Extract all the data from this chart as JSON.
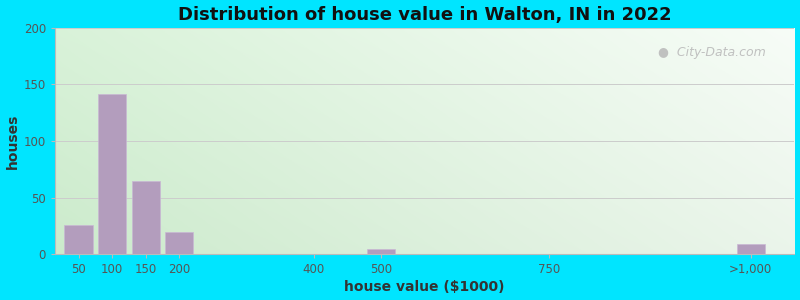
{
  "title": "Distribution of house value in Walton, IN in 2022",
  "xlabel": "house value ($1000)",
  "ylabel": "houses",
  "bar_color": "#b39dbd",
  "bar_edgecolor": "#c9b8d4",
  "outer_background": "#00e5ff",
  "ylim": [
    0,
    200
  ],
  "yticks": [
    0,
    50,
    100,
    150,
    200
  ],
  "categories": [
    "50",
    "100",
    "150",
    "200",
    "400",
    "500",
    "750",
    ">1,000"
  ],
  "values": [
    26,
    142,
    65,
    20,
    0,
    5,
    0,
    9
  ],
  "title_fontsize": 13,
  "axis_label_fontsize": 10,
  "watermark_text": "City-Data.com",
  "bg_color_topleft": "#d8eeda",
  "bg_color_topright": "#f5fbf5",
  "bg_color_bottomleft": "#cce8cc",
  "bg_color_bottomright": "#eef8ee"
}
